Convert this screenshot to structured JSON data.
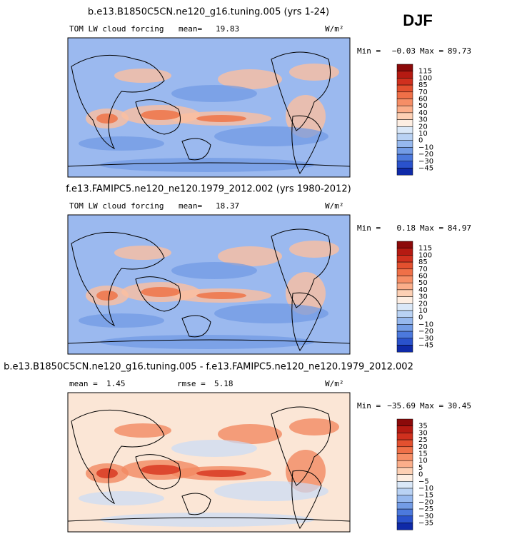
{
  "season": "DJF",
  "panels": [
    {
      "title": "b.e13.B1850C5CN.ne120_g16.tuning.005 (yrs 1-24)",
      "stats": [
        {
          "label": "TOM LW cloud forcing"
        },
        {
          "label": "mean=",
          "value": "19.83"
        }
      ],
      "units": "W/m²",
      "min_label": "Min =",
      "min": "−0.03",
      "max_label": "Max =",
      "max": "89.73",
      "colorbar": [
        "115",
        "100",
        "85",
        "70",
        "60",
        "50",
        "40",
        "30",
        "20",
        "10",
        "0",
        "−10",
        "−20",
        "−30",
        "−45"
      ],
      "background": "#9bb9ef"
    },
    {
      "title": "f.e13.FAMIPC5.ne120_ne120.1979_2012.002 (yrs 1980-2012)",
      "stats": [
        {
          "label": "TOM LW cloud forcing"
        },
        {
          "label": "mean=",
          "value": "18.37"
        }
      ],
      "units": "W/m²",
      "min_label": "Min =",
      "min": "0.18",
      "max_label": "Max =",
      "max": "84.97",
      "colorbar": [
        "115",
        "100",
        "85",
        "70",
        "60",
        "50",
        "40",
        "30",
        "20",
        "10",
        "0",
        "−10",
        "−20",
        "−30",
        "−45"
      ],
      "background": "#9bb9ef"
    },
    {
      "title": "b.e13.B1850C5CN.ne120_g16.tuning.005 - f.e13.FAMIPC5.ne120_ne120.1979_2012.002",
      "stats": [
        {
          "label": "mean =",
          "value": "1.45"
        },
        {
          "label": "rmse =",
          "value": "5.18"
        }
      ],
      "units": "W/m²",
      "min_label": "Min =",
      "min": "−35.69",
      "max_label": "Max =",
      "max": "30.45",
      "colorbar": [
        "35",
        "30",
        "25",
        "20",
        "15",
        "10",
        "5",
        "0",
        "−5",
        "−10",
        "−15",
        "−20",
        "−25",
        "−30",
        "−35"
      ],
      "background": "#fbe6d6"
    }
  ],
  "colorbar_colors": [
    "#8c0a0a",
    "#b51a12",
    "#d0301e",
    "#e3502f",
    "#ef7048",
    "#f68e66",
    "#fbae8a",
    "#fdd0b4",
    "#fdeee2",
    "#dae8f8",
    "#b9d2f4",
    "#96b8ee",
    "#739ce6",
    "#4c79dd",
    "#2a52cc",
    "#0f2aa8"
  ]
}
